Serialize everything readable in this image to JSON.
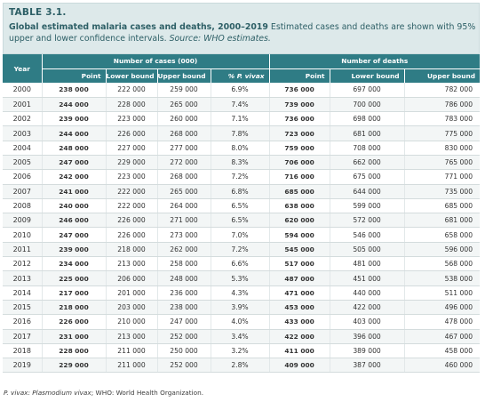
{
  "caption": {
    "table_number": "TABLE 3.1.",
    "title_bold": "Global estimated malaria cases and deaths, 2000–2019",
    "title_rest": " Estimated cases and deaths are shown with 95% upper and lower confidence intervals. ",
    "source": "Source: WHO estimates."
  },
  "headers": {
    "year": "Year",
    "cases_group": "Number of cases (000)",
    "deaths_group": "Number of deaths",
    "columns": [
      "Point",
      "Lower bound",
      "Upper bound",
      "% P. vivax",
      "Point",
      "Lower bound",
      "Upper bound"
    ]
  },
  "rows": [
    {
      "year": "2000",
      "c_point": "238 000",
      "c_lower": "222 000",
      "c_upper": "259 000",
      "pv": "6.9%",
      "d_point": "736 000",
      "d_lower": "697 000",
      "d_upper": "782 000"
    },
    {
      "year": "2001",
      "c_point": "244 000",
      "c_lower": "228 000",
      "c_upper": "265 000",
      "pv": "7.4%",
      "d_point": "739 000",
      "d_lower": "700 000",
      "d_upper": "786 000"
    },
    {
      "year": "2002",
      "c_point": "239 000",
      "c_lower": "223 000",
      "c_upper": "260 000",
      "pv": "7.1%",
      "d_point": "736 000",
      "d_lower": "698 000",
      "d_upper": "783 000"
    },
    {
      "year": "2003",
      "c_point": "244 000",
      "c_lower": "226 000",
      "c_upper": "268 000",
      "pv": "7.8%",
      "d_point": "723 000",
      "d_lower": "681 000",
      "d_upper": "775 000"
    },
    {
      "year": "2004",
      "c_point": "248 000",
      "c_lower": "227 000",
      "c_upper": "277 000",
      "pv": "8.0%",
      "d_point": "759 000",
      "d_lower": "708 000",
      "d_upper": "830 000"
    },
    {
      "year": "2005",
      "c_point": "247 000",
      "c_lower": "229 000",
      "c_upper": "272 000",
      "pv": "8.3%",
      "d_point": "706 000",
      "d_lower": "662 000",
      "d_upper": "765 000"
    },
    {
      "year": "2006",
      "c_point": "242 000",
      "c_lower": "223 000",
      "c_upper": "268 000",
      "pv": "7.2%",
      "d_point": "716 000",
      "d_lower": "675 000",
      "d_upper": "771 000"
    },
    {
      "year": "2007",
      "c_point": "241 000",
      "c_lower": "222 000",
      "c_upper": "265 000",
      "pv": "6.8%",
      "d_point": "685 000",
      "d_lower": "644 000",
      "d_upper": "735 000"
    },
    {
      "year": "2008",
      "c_point": "240 000",
      "c_lower": "222 000",
      "c_upper": "264 000",
      "pv": "6.5%",
      "d_point": "638 000",
      "d_lower": "599 000",
      "d_upper": "685 000"
    },
    {
      "year": "2009",
      "c_point": "246 000",
      "c_lower": "226 000",
      "c_upper": "271 000",
      "pv": "6.5%",
      "d_point": "620 000",
      "d_lower": "572 000",
      "d_upper": "681 000"
    },
    {
      "year": "2010",
      "c_point": "247 000",
      "c_lower": "226 000",
      "c_upper": "273 000",
      "pv": "7.0%",
      "d_point": "594 000",
      "d_lower": "546 000",
      "d_upper": "658 000"
    },
    {
      "year": "2011",
      "c_point": "239 000",
      "c_lower": "218 000",
      "c_upper": "262 000",
      "pv": "7.2%",
      "d_point": "545 000",
      "d_lower": "505 000",
      "d_upper": "596 000"
    },
    {
      "year": "2012",
      "c_point": "234 000",
      "c_lower": "213 000",
      "c_upper": "258 000",
      "pv": "6.6%",
      "d_point": "517 000",
      "d_lower": "481 000",
      "d_upper": "568 000"
    },
    {
      "year": "2013",
      "c_point": "225 000",
      "c_lower": "206 000",
      "c_upper": "248 000",
      "pv": "5.3%",
      "d_point": "487 000",
      "d_lower": "451 000",
      "d_upper": "538 000"
    },
    {
      "year": "2014",
      "c_point": "217 000",
      "c_lower": "201 000",
      "c_upper": "236 000",
      "pv": "4.3%",
      "d_point": "471 000",
      "d_lower": "440 000",
      "d_upper": "511 000"
    },
    {
      "year": "2015",
      "c_point": "218 000",
      "c_lower": "203 000",
      "c_upper": "238 000",
      "pv": "3.9%",
      "d_point": "453 000",
      "d_lower": "422 000",
      "d_upper": "496 000"
    },
    {
      "year": "2016",
      "c_point": "226 000",
      "c_lower": "210 000",
      "c_upper": "247 000",
      "pv": "4.0%",
      "d_point": "433 000",
      "d_lower": "403 000",
      "d_upper": "478 000"
    },
    {
      "year": "2017",
      "c_point": "231 000",
      "c_lower": "213 000",
      "c_upper": "252 000",
      "pv": "3.4%",
      "d_point": "422 000",
      "d_lower": "396 000",
      "d_upper": "467 000"
    },
    {
      "year": "2018",
      "c_point": "228 000",
      "c_lower": "211 000",
      "c_upper": "250 000",
      "pv": "3.2%",
      "d_point": "411 000",
      "d_lower": "389 000",
      "d_upper": "458 000"
    },
    {
      "year": "2019",
      "c_point": "229 000",
      "c_lower": "211 000",
      "c_upper": "252 000",
      "pv": "2.8%",
      "d_point": "409 000",
      "d_lower": "387 000",
      "d_upper": "460 000"
    }
  ],
  "footnote": {
    "abbr": "P. vivax: Plasmodium vivax",
    "rest": "; WHO: World Health Organization."
  },
  "colors": {
    "header_bg": "#2f7c85",
    "caption_bg": "#dde9ea",
    "caption_text": "#2d5f66"
  }
}
